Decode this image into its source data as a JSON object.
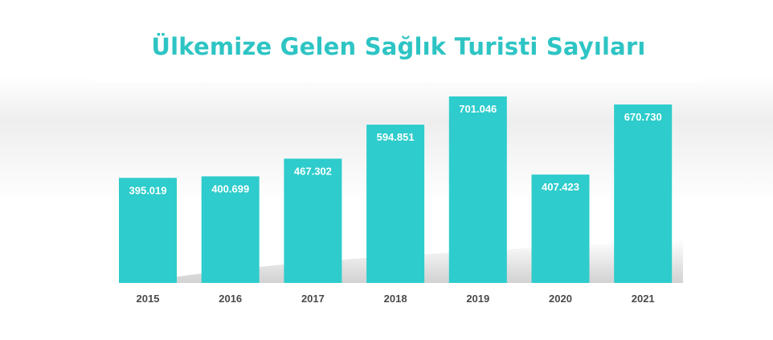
{
  "chart_data": {
    "type": "bar",
    "title": "Ülkemize Gelen Sağlık Turisti Sayıları",
    "xlabel": "",
    "ylabel": "",
    "categories": [
      "2015",
      "2016",
      "2017",
      "2018",
      "2019",
      "2020",
      "2021"
    ],
    "values": [
      395019,
      400699,
      467302,
      594851,
      701046,
      407423,
      670730
    ],
    "value_labels": [
      "395.019",
      "400.699",
      "467.302",
      "594.851",
      "701.046",
      "407.423",
      "670.730"
    ],
    "ylim": [
      0,
      701046
    ],
    "grid": false,
    "legend": "none",
    "colors": {
      "bar": "#2ecccc",
      "title": "#2ec4c4",
      "value_label": "#ffffff",
      "category_label": "#4a4a4a"
    }
  }
}
